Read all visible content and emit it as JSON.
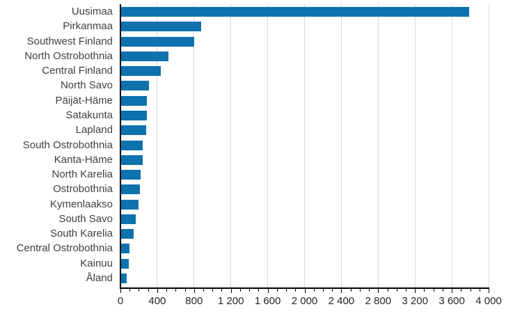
{
  "chart_data": {
    "type": "bar",
    "orientation": "horizontal",
    "title": "",
    "xlabel": "",
    "ylabel": "",
    "categories": [
      "Uusimaa",
      "Pirkanmaa",
      "Southwest Finland",
      "North Ostrobothnia",
      "Central Finland",
      "North Savo",
      "Päijät-Häme",
      "Satakunta",
      "Lapland",
      "South Ostrobothnia",
      "Kanta-Häme",
      "North Karelia",
      "Ostrobothnia",
      "Kymenlaakso",
      "South Savo",
      "South Karelia",
      "Central Ostrobothnia",
      "Kainuu",
      "Åland"
    ],
    "values": [
      3790,
      875,
      800,
      525,
      435,
      310,
      290,
      285,
      280,
      245,
      240,
      220,
      215,
      200,
      170,
      145,
      100,
      90,
      70
    ],
    "xlim": [
      0,
      4000
    ],
    "x_major_tick_step": 400,
    "x_minor_tick_step": 100,
    "x_tick_labels": [
      "0",
      "400",
      "800",
      "1 200",
      "1 600",
      "2 000",
      "2 400",
      "2 800",
      "3 200",
      "3 600",
      "4 000"
    ],
    "grid": "vertical-major",
    "legend": "none",
    "colors": {
      "bar": "#0d72ad",
      "gridline": "#d9d9d9",
      "axis": "#000000",
      "category_label": "#404040",
      "tick_label": "#262626",
      "background": "#ffffff"
    }
  }
}
